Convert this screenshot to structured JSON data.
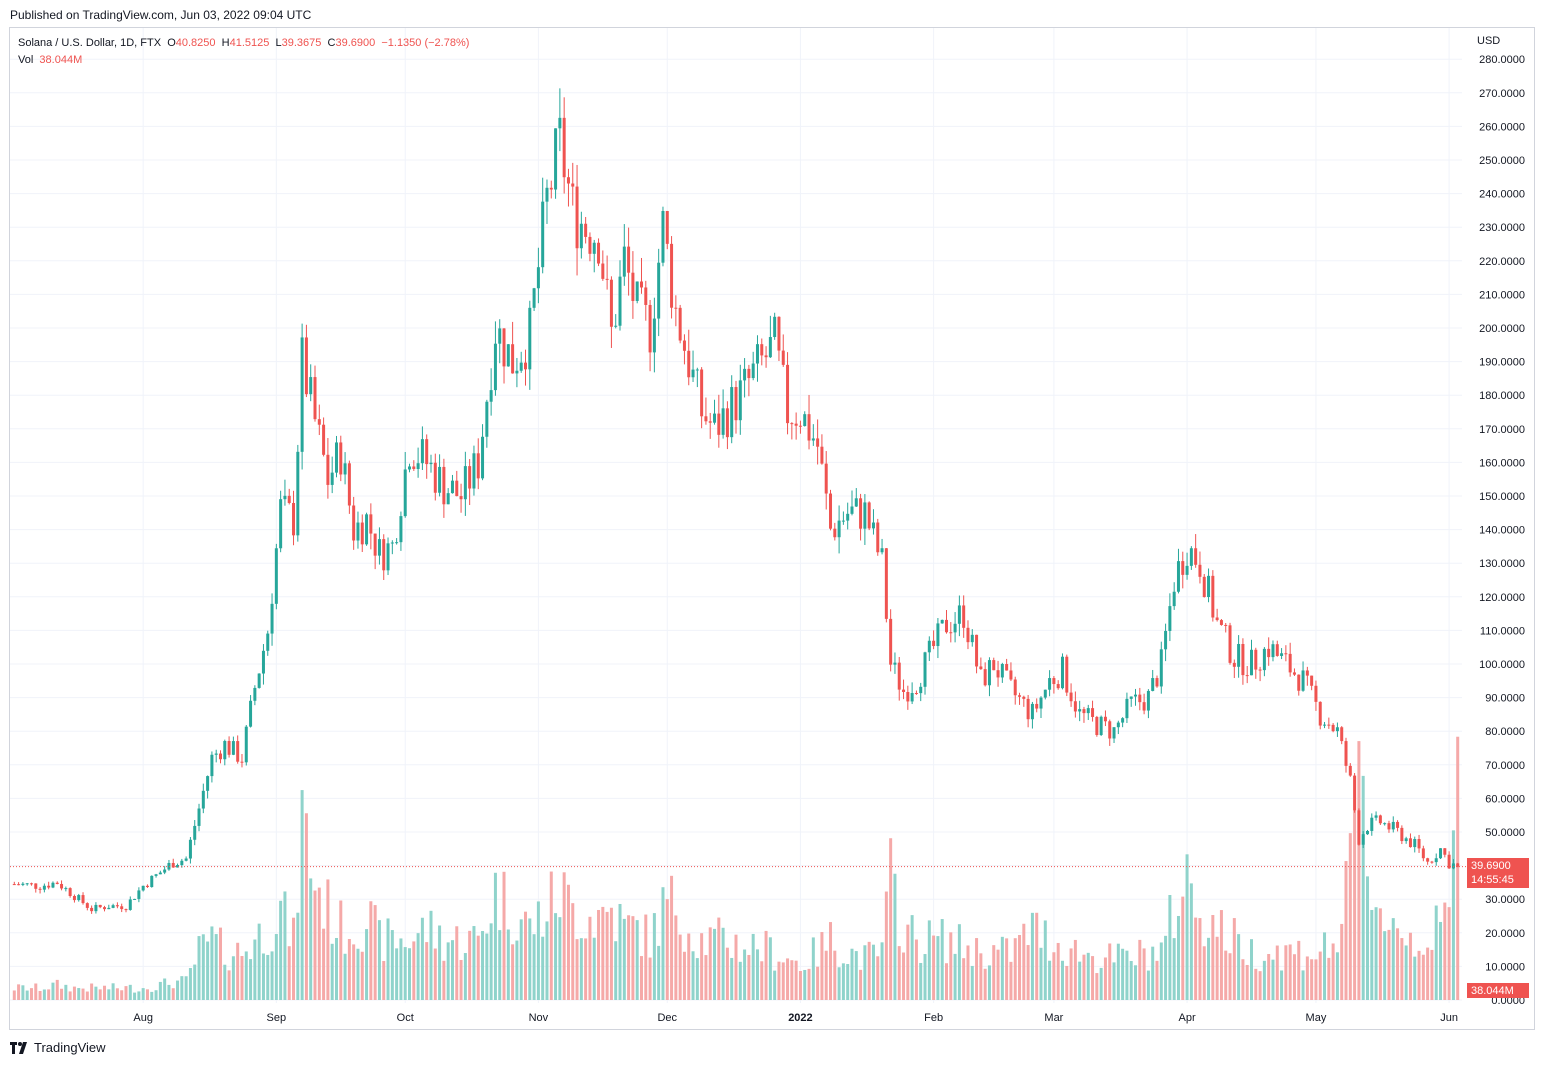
{
  "header": {
    "published": "Published on TradingView.com, Jun 03, 2022 09:04 UTC"
  },
  "legend": {
    "symbol": "Solana / U.S. Dollar, 1D, FTX",
    "open_label": "O",
    "open": "40.8250",
    "high_label": "H",
    "high": "41.5125",
    "low_label": "L",
    "low": "39.3675",
    "close_label": "C",
    "close": "39.6900",
    "change": "−1.1350 (−2.78%)",
    "vol_label": "Vol",
    "vol": "38.044M"
  },
  "price_scale": {
    "currency": "USD"
  },
  "tags": {
    "last_price": "39.6900",
    "countdown": "14:55:45",
    "last_volume": "38.044M"
  },
  "brand": {
    "name": "TradingView"
  },
  "colors": {
    "up": "#26a69a",
    "down": "#ef5350",
    "up_vol": "#8fd3cb",
    "down_vol": "#f5a9a8",
    "grid": "#f0f3fa"
  },
  "chart_data": {
    "type": "candlestick",
    "title": "Solana / U.S. Dollar, 1D, FTX",
    "ylabel": "USD",
    "price_range": [
      0,
      280
    ],
    "price_ticks": [
      0,
      10,
      20,
      30,
      40,
      50,
      60,
      70,
      80,
      90,
      100,
      110,
      120,
      130,
      140,
      150,
      160,
      170,
      180,
      190,
      200,
      210,
      220,
      230,
      240,
      250,
      260,
      270,
      280
    ],
    "price_tick_labels": [
      "0.0000",
      "10.0000",
      "20.0000",
      "30.0000",
      "40.0000",
      "50.0000",
      "60.0000",
      "70.0000",
      "80.0000",
      "90.0000",
      "100.0000",
      "110.0000",
      "120.0000",
      "130.0000",
      "140.0000",
      "150.0000",
      "160.0000",
      "170.0000",
      "180.0000",
      "190.0000",
      "200.0000",
      "210.0000",
      "220.0000",
      "230.0000",
      "240.0000",
      "250.0000",
      "260.0000",
      "270.0000",
      "280.0000"
    ],
    "time_labels": [
      {
        "date": "2021-08-01",
        "label": "Aug",
        "bold": false
      },
      {
        "date": "2021-09-01",
        "label": "Sep",
        "bold": false
      },
      {
        "date": "2021-10-01",
        "label": "Oct",
        "bold": false
      },
      {
        "date": "2021-11-01",
        "label": "Nov",
        "bold": false
      },
      {
        "date": "2021-12-01",
        "label": "Dec",
        "bold": false
      },
      {
        "date": "2022-01-01",
        "label": "2022",
        "bold": true
      },
      {
        "date": "2022-02-01",
        "label": "Feb",
        "bold": false
      },
      {
        "date": "2022-03-01",
        "label": "Mar",
        "bold": false
      },
      {
        "date": "2022-04-01",
        "label": "Apr",
        "bold": false
      },
      {
        "date": "2022-05-01",
        "label": "May",
        "bold": false
      },
      {
        "date": "2022-06-01",
        "label": "Jun",
        "bold": false
      }
    ],
    "volume_unit": "M",
    "series": [
      {
        "date": "2021-07-02",
        "close": 34.5,
        "volume": 2
      },
      {
        "date": "2021-07-08",
        "close": 34,
        "volume": 2
      },
      {
        "date": "2021-07-12",
        "close": 35,
        "volume": 2.5
      },
      {
        "date": "2021-07-16",
        "close": 31,
        "volume": 2
      },
      {
        "date": "2021-07-20",
        "close": 27,
        "volume": 2
      },
      {
        "date": "2021-07-24",
        "close": 28,
        "volume": 2
      },
      {
        "date": "2021-07-28",
        "close": 28,
        "volume": 2
      },
      {
        "date": "2021-08-01",
        "close": 34,
        "volume": 2
      },
      {
        "date": "2021-08-05",
        "close": 38,
        "volume": 2.5
      },
      {
        "date": "2021-08-08",
        "close": 41,
        "volume": 3
      },
      {
        "date": "2021-08-11",
        "close": 42,
        "volume": 3
      },
      {
        "date": "2021-08-14",
        "close": 57,
        "volume": 8
      },
      {
        "date": "2021-08-17",
        "close": 72,
        "volume": 10
      },
      {
        "date": "2021-08-20",
        "close": 76,
        "volume": 8
      },
      {
        "date": "2021-08-24",
        "close": 72,
        "volume": 8
      },
      {
        "date": "2021-08-27",
        "close": 93,
        "volume": 10
      },
      {
        "date": "2021-08-30",
        "close": 110,
        "volume": 12
      },
      {
        "date": "2021-09-02",
        "close": 146,
        "volume": 15
      },
      {
        "date": "2021-09-05",
        "close": 143,
        "volume": 10
      },
      {
        "date": "2021-09-07",
        "close": 190,
        "volume": 30
      },
      {
        "date": "2021-09-10",
        "close": 172,
        "volume": 20
      },
      {
        "date": "2021-09-13",
        "close": 155,
        "volume": 15
      },
      {
        "date": "2021-09-16",
        "close": 163,
        "volume": 12
      },
      {
        "date": "2021-09-19",
        "close": 140,
        "volume": 12
      },
      {
        "date": "2021-09-22",
        "close": 143,
        "volume": 14
      },
      {
        "date": "2021-09-25",
        "close": 133,
        "volume": 10
      },
      {
        "date": "2021-09-28",
        "close": 135,
        "volume": 10
      },
      {
        "date": "2021-10-02",
        "close": 165,
        "volume": 10
      },
      {
        "date": "2021-10-06",
        "close": 160,
        "volume": 12
      },
      {
        "date": "2021-10-10",
        "close": 153,
        "volume": 10
      },
      {
        "date": "2021-10-14",
        "close": 150,
        "volume": 10
      },
      {
        "date": "2021-10-18",
        "close": 160,
        "volume": 10
      },
      {
        "date": "2021-10-22",
        "close": 200,
        "volume": 18
      },
      {
        "date": "2021-10-26",
        "close": 190,
        "volume": 15
      },
      {
        "date": "2021-10-30",
        "close": 198,
        "volume": 12
      },
      {
        "date": "2021-11-03",
        "close": 238,
        "volume": 15
      },
      {
        "date": "2021-11-06",
        "close": 255,
        "volume": 18
      },
      {
        "date": "2021-11-09",
        "close": 235,
        "volume": 15
      },
      {
        "date": "2021-11-12",
        "close": 230,
        "volume": 14
      },
      {
        "date": "2021-11-15",
        "close": 228,
        "volume": 14
      },
      {
        "date": "2021-11-18",
        "close": 198,
        "volume": 15
      },
      {
        "date": "2021-11-21",
        "close": 220,
        "volume": 12
      },
      {
        "date": "2021-11-24",
        "close": 205,
        "volume": 12
      },
      {
        "date": "2021-11-27",
        "close": 200,
        "volume": 10
      },
      {
        "date": "2021-11-30",
        "close": 230,
        "volume": 15
      },
      {
        "date": "2021-12-03",
        "close": 205,
        "volume": 16
      },
      {
        "date": "2021-12-06",
        "close": 190,
        "volume": 12
      },
      {
        "date": "2021-12-09",
        "close": 175,
        "volume": 10
      },
      {
        "date": "2021-12-12",
        "close": 170,
        "volume": 10
      },
      {
        "date": "2021-12-15",
        "close": 175,
        "volume": 10
      },
      {
        "date": "2021-12-18",
        "close": 180,
        "volume": 9
      },
      {
        "date": "2021-12-22",
        "close": 188,
        "volume": 9
      },
      {
        "date": "2021-12-26",
        "close": 195,
        "volume": 8
      },
      {
        "date": "2021-12-29",
        "close": 175,
        "volume": 7
      },
      {
        "date": "2022-01-01",
        "close": 175,
        "volume": 6
      },
      {
        "date": "2022-01-05",
        "close": 165,
        "volume": 8
      },
      {
        "date": "2022-01-08",
        "close": 140,
        "volume": 10
      },
      {
        "date": "2022-01-12",
        "close": 145,
        "volume": 8
      },
      {
        "date": "2022-01-16",
        "close": 145,
        "volume": 7
      },
      {
        "date": "2022-01-20",
        "close": 130,
        "volume": 8
      },
      {
        "date": "2022-01-22",
        "close": 100,
        "volume": 20
      },
      {
        "date": "2022-01-25",
        "close": 92,
        "volume": 12
      },
      {
        "date": "2022-01-28",
        "close": 95,
        "volume": 10
      },
      {
        "date": "2022-02-01",
        "close": 105,
        "volume": 10
      },
      {
        "date": "2022-02-04",
        "close": 112,
        "volume": 10
      },
      {
        "date": "2022-02-08",
        "close": 115,
        "volume": 9
      },
      {
        "date": "2022-02-12",
        "close": 95,
        "volume": 8
      },
      {
        "date": "2022-02-15",
        "close": 100,
        "volume": 8
      },
      {
        "date": "2022-02-19",
        "close": 92,
        "volume": 8
      },
      {
        "date": "2022-02-24",
        "close": 85,
        "volume": 12
      },
      {
        "date": "2022-02-28",
        "close": 95,
        "volume": 10
      },
      {
        "date": "2022-03-03",
        "close": 98,
        "volume": 9
      },
      {
        "date": "2022-03-07",
        "close": 85,
        "volume": 8
      },
      {
        "date": "2022-03-11",
        "close": 82,
        "volume": 7
      },
      {
        "date": "2022-03-15",
        "close": 80,
        "volume": 7
      },
      {
        "date": "2022-03-19",
        "close": 88,
        "volume": 7
      },
      {
        "date": "2022-03-23",
        "close": 90,
        "volume": 8
      },
      {
        "date": "2022-03-26",
        "close": 100,
        "volume": 8
      },
      {
        "date": "2022-03-29",
        "close": 125,
        "volume": 15
      },
      {
        "date": "2022-04-01",
        "close": 135,
        "volume": 20
      },
      {
        "date": "2022-04-04",
        "close": 130,
        "volume": 15
      },
      {
        "date": "2022-04-08",
        "close": 112,
        "volume": 12
      },
      {
        "date": "2022-04-12",
        "close": 102,
        "volume": 10
      },
      {
        "date": "2022-04-16",
        "close": 100,
        "volume": 8
      },
      {
        "date": "2022-04-20",
        "close": 105,
        "volume": 8
      },
      {
        "date": "2022-04-24",
        "close": 100,
        "volume": 8
      },
      {
        "date": "2022-04-28",
        "close": 95,
        "volume": 8
      },
      {
        "date": "2022-05-02",
        "close": 85,
        "volume": 8
      },
      {
        "date": "2022-05-06",
        "close": 80,
        "volume": 10
      },
      {
        "date": "2022-05-09",
        "close": 65,
        "volume": 20
      },
      {
        "date": "2022-05-11",
        "close": 48,
        "volume": 38
      },
      {
        "date": "2022-05-13",
        "close": 52,
        "volume": 22
      },
      {
        "date": "2022-05-16",
        "close": 53,
        "volume": 15
      },
      {
        "date": "2022-05-20",
        "close": 50,
        "volume": 12
      },
      {
        "date": "2022-05-24",
        "close": 46,
        "volume": 10
      },
      {
        "date": "2022-05-27",
        "close": 41,
        "volume": 10
      },
      {
        "date": "2022-05-30",
        "close": 45,
        "volume": 12
      },
      {
        "date": "2022-06-01",
        "close": 40.8,
        "volume": 14
      },
      {
        "date": "2022-06-03",
        "close": 39.69,
        "volume": 38.044
      }
    ]
  }
}
